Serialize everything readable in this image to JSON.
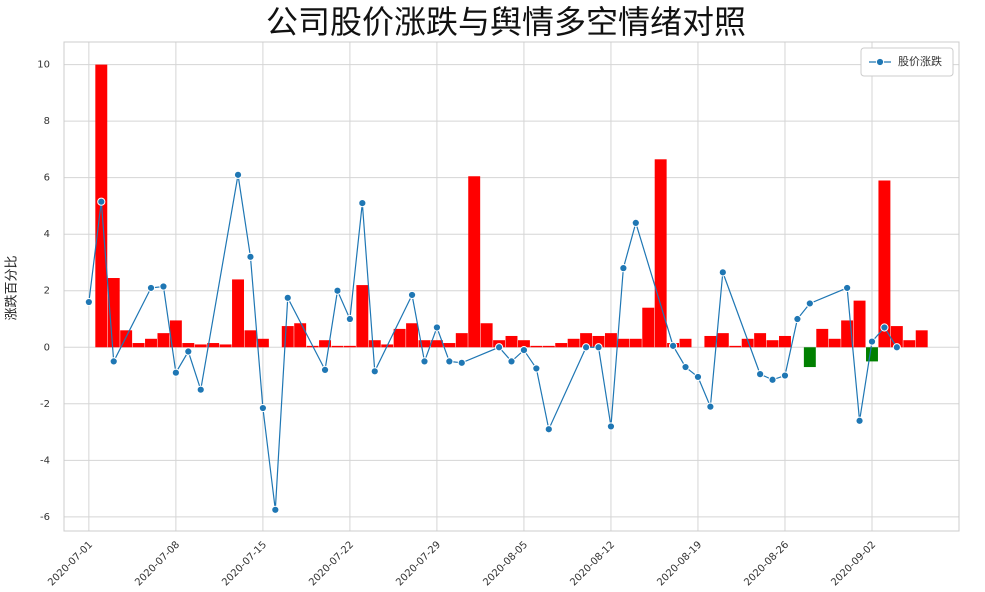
{
  "chart_data": {
    "type": "bar+line",
    "title": "公司股价涨跌与舆情多空情绪对照",
    "ylabel": "涨跌百分比",
    "xlim": [
      "2020-06-29",
      "2020-09-09"
    ],
    "xticks": [
      "2020-07-01",
      "2020-07-08",
      "2020-07-15",
      "2020-07-22",
      "2020-07-29",
      "2020-08-05",
      "2020-08-12",
      "2020-08-19",
      "2020-08-26",
      "2020-09-02"
    ],
    "ylim": [
      -6.5,
      10.8
    ],
    "yticks": [
      -6,
      -4,
      -2,
      0,
      2,
      4,
      6,
      8,
      10
    ],
    "grid": true,
    "legend": "upper right",
    "series": [
      {
        "name": "股价涨跌",
        "type": "line",
        "color": "#1f77b4",
        "x": [
          "2020-07-01",
          "2020-07-02",
          "2020-07-03",
          "2020-07-06",
          "2020-07-07",
          "2020-07-08",
          "2020-07-09",
          "2020-07-10",
          "2020-07-13",
          "2020-07-14",
          "2020-07-15",
          "2020-07-16",
          "2020-07-17",
          "2020-07-20",
          "2020-07-21",
          "2020-07-22",
          "2020-07-23",
          "2020-07-24",
          "2020-07-27",
          "2020-07-28",
          "2020-07-29",
          "2020-07-30",
          "2020-07-31",
          "2020-08-03",
          "2020-08-04",
          "2020-08-05",
          "2020-08-06",
          "2020-08-07",
          "2020-08-10",
          "2020-08-11",
          "2020-08-12",
          "2020-08-13",
          "2020-08-14",
          "2020-08-17",
          "2020-08-18",
          "2020-08-19",
          "2020-08-20",
          "2020-08-21",
          "2020-08-24",
          "2020-08-25",
          "2020-08-26",
          "2020-08-27",
          "2020-08-28",
          "2020-08-31",
          "2020-09-01",
          "2020-09-02",
          "2020-09-03",
          "2020-09-04"
        ],
        "values": [
          1.6,
          5.15,
          -0.5,
          2.1,
          2.15,
          -0.9,
          -0.15,
          -1.5,
          6.1,
          3.2,
          -2.15,
          -5.75,
          1.75,
          -0.8,
          2.0,
          1.0,
          5.1,
          -0.85,
          1.85,
          -0.5,
          0.7,
          -0.5,
          -0.55,
          0.0,
          -0.5,
          -0.1,
          -0.75,
          -2.9,
          0.0,
          0.0,
          -2.8,
          2.8,
          4.4,
          0.05,
          -0.7,
          -1.05,
          -2.1,
          2.65,
          -0.95,
          -1.15,
          -1.0,
          1.0,
          1.55,
          2.1,
          -2.6,
          0.2,
          0.7,
          0.0
        ]
      },
      {
        "type": "bar",
        "color_positive": "#ff0000",
        "color_negative": "#008000",
        "x": [
          "2020-07-02",
          "2020-07-03",
          "2020-07-04",
          "2020-07-05",
          "2020-07-06",
          "2020-07-07",
          "2020-07-08",
          "2020-07-09",
          "2020-07-10",
          "2020-07-11",
          "2020-07-12",
          "2020-07-13",
          "2020-07-14",
          "2020-07-15",
          "2020-07-16",
          "2020-07-17",
          "2020-07-18",
          "2020-07-19",
          "2020-07-20",
          "2020-07-21",
          "2020-07-22",
          "2020-07-23",
          "2020-07-24",
          "2020-07-25",
          "2020-07-26",
          "2020-07-27",
          "2020-07-28",
          "2020-07-29",
          "2020-07-30",
          "2020-07-31",
          "2020-08-01",
          "2020-08-02",
          "2020-08-03",
          "2020-08-04",
          "2020-08-05",
          "2020-08-06",
          "2020-08-07",
          "2020-08-08",
          "2020-08-09",
          "2020-08-10",
          "2020-08-11",
          "2020-08-12",
          "2020-08-13",
          "2020-08-14",
          "2020-08-15",
          "2020-08-16",
          "2020-08-17",
          "2020-08-18",
          "2020-08-19",
          "2020-08-20",
          "2020-08-21",
          "2020-08-22",
          "2020-08-23",
          "2020-08-24",
          "2020-08-25",
          "2020-08-26",
          "2020-08-27",
          "2020-08-28",
          "2020-08-29",
          "2020-08-30",
          "2020-08-31",
          "2020-09-01",
          "2020-09-02",
          "2020-09-03",
          "2020-09-04",
          "2020-09-05",
          "2020-09-06"
        ],
        "values": [
          10,
          2.45,
          0.6,
          0.15,
          0.3,
          0.5,
          0.95,
          0.15,
          0.1,
          0.15,
          0.1,
          2.4,
          0.6,
          0.3,
          0,
          0.75,
          0.85,
          0.05,
          0.25,
          0.05,
          0.05,
          2.2,
          0.25,
          0.1,
          0.65,
          0.85,
          0.25,
          0.25,
          0.15,
          0.5,
          6.05,
          0.85,
          0.25,
          0.4,
          0.25,
          0.05,
          0.05,
          0.15,
          0.3,
          0.5,
          0.4,
          0.5,
          0.3,
          0.3,
          1.4,
          6.65,
          0.15,
          0.3,
          0,
          0.4,
          0.5,
          0.05,
          0.3,
          0.5,
          0.25,
          0.4,
          0,
          -0.7,
          0.65,
          0.3,
          0.95,
          1.65,
          -0.5,
          5.9,
          0.75,
          0.25,
          0.6
        ]
      }
    ]
  }
}
